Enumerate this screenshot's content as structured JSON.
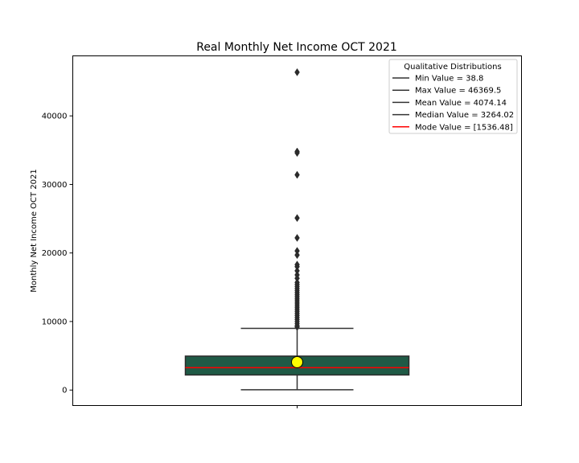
{
  "colors": {
    "box_fill": "#1f5a46",
    "box_edge": "#2b2b2b",
    "whisker": "#333333",
    "median": "#ff0000",
    "mean_marker": "#ffff00",
    "outlier": "#2b2b2b",
    "legend_line": "#333333",
    "legend_mode_line": "#ff0000"
  },
  "chart_data": {
    "type": "box",
    "title": "Real Monthly Net Income OCT 2021",
    "xlabel": "",
    "ylabel": "Monthly Net Income OCT 2021",
    "ylim": [
      -2200,
      48700
    ],
    "yticks": [
      0,
      10000,
      20000,
      30000,
      40000
    ],
    "ytick_labels": [
      "0",
      "10000",
      "20000",
      "30000",
      "40000"
    ],
    "grid": false,
    "legend_position": "top-right",
    "box": {
      "min": 38.8,
      "q1": 2200,
      "median": 3264.02,
      "q3": 4950,
      "whisker_low": 38.8,
      "whisker_high": 9000,
      "mean": 4074.14,
      "max": 46369.5
    },
    "outliers": [
      46369.5,
      34800,
      34600,
      31400,
      25100,
      22200,
      20300,
      19700,
      18300,
      18000,
      17400,
      16800,
      16300,
      15700,
      15400,
      15100,
      14800,
      14500,
      14200,
      13900,
      13600,
      13300,
      13000,
      12700,
      12400,
      12100,
      11800,
      11500,
      11200,
      10900,
      10600,
      10300,
      10000,
      9700,
      9400,
      9200
    ],
    "legend": {
      "title": "Qualitative Distributions",
      "entries": [
        {
          "label": "Min Value = 38.8",
          "color": "#333333"
        },
        {
          "label": "Max Value = 46369.5",
          "color": "#333333"
        },
        {
          "label": "Mean Value = 4074.14",
          "color": "#333333"
        },
        {
          "label": "Median Value = 3264.02",
          "color": "#333333"
        },
        {
          "label": "Mode Value = [1536.48]",
          "color": "#ff0000"
        }
      ]
    }
  }
}
